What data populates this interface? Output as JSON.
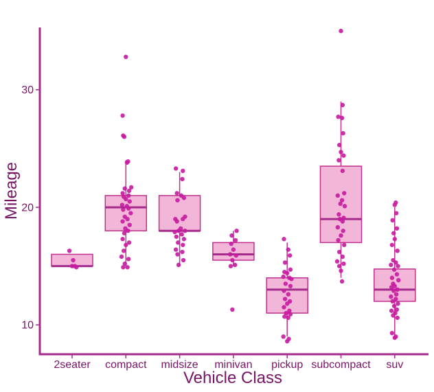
{
  "chart_data": {
    "type": "boxplot",
    "title": "",
    "xlabel": "Vehicle Class",
    "ylabel": "Mileage",
    "ylim": [
      7.5,
      35.3
    ],
    "yticks": [
      10,
      20,
      30
    ],
    "grid": false,
    "legend": "none",
    "categories": [
      "2seater",
      "compact",
      "midsize",
      "minivan",
      "pickup",
      "subcompact",
      "suv"
    ],
    "boxes": [
      {
        "q1": 15,
        "median": 15,
        "q3": 16,
        "whisker_low": 15,
        "whisker_high": 16
      },
      {
        "q1": 18,
        "median": 20,
        "q3": 21,
        "whisker_low": 15,
        "whisker_high": 24
      },
      {
        "q1": 18,
        "median": 18,
        "q3": 21,
        "whisker_low": 15,
        "whisker_high": 23
      },
      {
        "q1": 15.5,
        "median": 16,
        "q3": 17,
        "whisker_low": 15,
        "whisker_high": 18
      },
      {
        "q1": 11,
        "median": 13,
        "q3": 14,
        "whisker_low": 9,
        "whisker_high": 17
      },
      {
        "q1": 17,
        "median": 19,
        "q3": 23.5,
        "whisker_low": 14,
        "whisker_high": 29
      },
      {
        "q1": 12,
        "median": 13,
        "q3": 14.75,
        "whisker_low": 9,
        "whisker_high": 20
      }
    ],
    "points": [
      [
        [
          -0.05,
          16.3
        ],
        [
          0.02,
          15.5
        ],
        [
          0.0,
          15.0
        ],
        [
          0.08,
          14.9
        ],
        [
          0.05,
          15.0
        ]
      ],
      [
        [
          0.0,
          32.8
        ],
        [
          -0.06,
          27.8
        ],
        [
          -0.05,
          26.1
        ],
        [
          -0.03,
          26.0
        ],
        [
          0.04,
          23.9
        ],
        [
          0.02,
          23.8
        ],
        [
          0.1,
          21.7
        ],
        [
          -0.02,
          21.6
        ],
        [
          0.06,
          21.4
        ],
        [
          -0.06,
          21.2
        ],
        [
          0.05,
          21.0
        ],
        [
          -0.04,
          20.9
        ],
        [
          0.0,
          20.7
        ],
        [
          0.07,
          20.5
        ],
        [
          -0.07,
          20.2
        ],
        [
          0.02,
          20.1
        ],
        [
          0.05,
          19.9
        ],
        [
          -0.05,
          19.8
        ],
        [
          0.09,
          19.5
        ],
        [
          -0.02,
          19.2
        ],
        [
          0.03,
          19.0
        ],
        [
          -0.06,
          18.8
        ],
        [
          0.07,
          18.5
        ],
        [
          -0.01,
          18.2
        ],
        [
          0.04,
          18.0
        ],
        [
          -0.03,
          17.8
        ],
        [
          -0.06,
          17.3
        ],
        [
          0.06,
          17.0
        ],
        [
          0.0,
          16.8
        ],
        [
          -0.04,
          16.3
        ],
        [
          -0.08,
          15.8
        ],
        [
          0.05,
          15.6
        ],
        [
          -0.02,
          15.2
        ],
        [
          -0.05,
          14.9
        ],
        [
          0.03,
          14.9
        ]
      ],
      [
        [
          -0.07,
          23.3
        ],
        [
          0.06,
          23.1
        ],
        [
          0.05,
          22.4
        ],
        [
          -0.05,
          21.2
        ],
        [
          0.03,
          21.0
        ],
        [
          0.08,
          20.8
        ],
        [
          -0.04,
          20.6
        ],
        [
          0.1,
          19.2
        ],
        [
          -0.08,
          19.0
        ],
        [
          0.06,
          19.0
        ],
        [
          -0.05,
          18.8
        ],
        [
          0.02,
          18.2
        ],
        [
          -0.02,
          18.0
        ],
        [
          0.1,
          18.0
        ],
        [
          -0.09,
          17.9
        ],
        [
          0.04,
          17.7
        ],
        [
          -0.06,
          17.5
        ],
        [
          0.08,
          17.3
        ],
        [
          -0.03,
          17.0
        ],
        [
          0.06,
          16.8
        ],
        [
          -0.07,
          16.4
        ],
        [
          0.05,
          16.2
        ],
        [
          -0.04,
          16.0
        ],
        [
          0.07,
          15.5
        ],
        [
          -0.02,
          15.1
        ]
      ],
      [
        [
          0.06,
          18.0
        ],
        [
          -0.03,
          17.6
        ],
        [
          0.04,
          17.2
        ],
        [
          -0.04,
          16.9
        ],
        [
          0.0,
          16.4
        ],
        [
          -0.06,
          16.0
        ],
        [
          0.05,
          15.9
        ],
        [
          -0.02,
          15.5
        ],
        [
          0.03,
          15.1
        ],
        [
          -0.05,
          15.0
        ],
        [
          -0.02,
          11.3
        ]
      ],
      [
        [
          -0.06,
          17.3
        ],
        [
          0.02,
          16.4
        ],
        [
          0.05,
          15.9
        ],
        [
          -0.04,
          15.3
        ],
        [
          0.06,
          14.7
        ],
        [
          -0.05,
          14.5
        ],
        [
          0.0,
          14.4
        ],
        [
          -0.07,
          14.1
        ],
        [
          0.04,
          14.0
        ],
        [
          0.08,
          13.9
        ],
        [
          -0.03,
          13.5
        ],
        [
          0.06,
          13.3
        ],
        [
          -0.06,
          12.9
        ],
        [
          0.02,
          12.6
        ],
        [
          -0.04,
          12.2
        ],
        [
          0.05,
          12.0
        ],
        [
          0.0,
          11.8
        ],
        [
          -0.06,
          11.5
        ],
        [
          0.04,
          11.2
        ],
        [
          -0.02,
          11.0
        ],
        [
          0.06,
          10.9
        ],
        [
          -0.05,
          10.7
        ],
        [
          0.02,
          10.6
        ],
        [
          -0.07,
          9.0
        ],
        [
          0.03,
          8.8
        ],
        [
          0.0,
          8.6
        ]
      ],
      [
        [
          0.0,
          35.0
        ],
        [
          0.03,
          28.7
        ],
        [
          -0.05,
          27.7
        ],
        [
          0.02,
          27.6
        ],
        [
          0.04,
          26.3
        ],
        [
          -0.03,
          25.3
        ],
        [
          0.0,
          24.7
        ],
        [
          0.05,
          24.4
        ],
        [
          -0.04,
          24.0
        ],
        [
          0.03,
          23.1
        ],
        [
          0.06,
          21.2
        ],
        [
          -0.06,
          21.0
        ],
        [
          0.02,
          20.6
        ],
        [
          -0.01,
          20.3
        ],
        [
          0.07,
          20.1
        ],
        [
          -0.04,
          19.4
        ],
        [
          0.05,
          19.1
        ],
        [
          -0.02,
          19.0
        ],
        [
          0.03,
          18.8
        ],
        [
          -0.06,
          18.3
        ],
        [
          0.04,
          18.0
        ],
        [
          0.0,
          17.6
        ],
        [
          -0.05,
          17.2
        ],
        [
          0.06,
          16.8
        ],
        [
          -0.03,
          16.2
        ],
        [
          0.03,
          15.8
        ],
        [
          -0.07,
          15.4
        ],
        [
          0.05,
          15.2
        ],
        [
          -0.03,
          15.0
        ],
        [
          0.0,
          14.6
        ],
        [
          0.02,
          13.7
        ]
      ],
      [
        [
          0.02,
          20.4
        ],
        [
          0.0,
          20.2
        ],
        [
          0.03,
          19.5
        ],
        [
          -0.04,
          18.9
        ],
        [
          0.04,
          18.2
        ],
        [
          -0.02,
          17.8
        ],
        [
          0.0,
          17.3
        ],
        [
          -0.05,
          16.8
        ],
        [
          0.05,
          16.3
        ],
        [
          -0.03,
          15.5
        ],
        [
          0.02,
          15.3
        ],
        [
          -0.07,
          15.1
        ],
        [
          0.06,
          15.0
        ],
        [
          -0.01,
          14.7
        ],
        [
          0.04,
          14.3
        ],
        [
          -0.05,
          14.0
        ],
        [
          0.07,
          13.8
        ],
        [
          -0.03,
          13.5
        ],
        [
          0.0,
          13.3
        ],
        [
          -0.06,
          13.2
        ],
        [
          0.05,
          13.0
        ],
        [
          -0.02,
          12.9
        ],
        [
          0.03,
          12.6
        ],
        [
          -0.07,
          12.4
        ],
        [
          0.02,
          12.2
        ],
        [
          -0.04,
          12.0
        ],
        [
          0.06,
          11.8
        ],
        [
          -0.01,
          11.6
        ],
        [
          0.04,
          11.3
        ],
        [
          -0.06,
          11.2
        ],
        [
          0.01,
          11.0
        ],
        [
          -0.03,
          10.8
        ],
        [
          0.05,
          10.6
        ],
        [
          -0.05,
          9.3
        ],
        [
          0.02,
          9.0
        ],
        [
          0.0,
          8.9
        ]
      ]
    ],
    "colors": {
      "axis": "#a42a8c",
      "text": "#7a1466",
      "box_fill": "#f2b6d8",
      "box_stroke": "#c0308e",
      "median": "#a42a8c",
      "point": "#c71aa0"
    }
  }
}
